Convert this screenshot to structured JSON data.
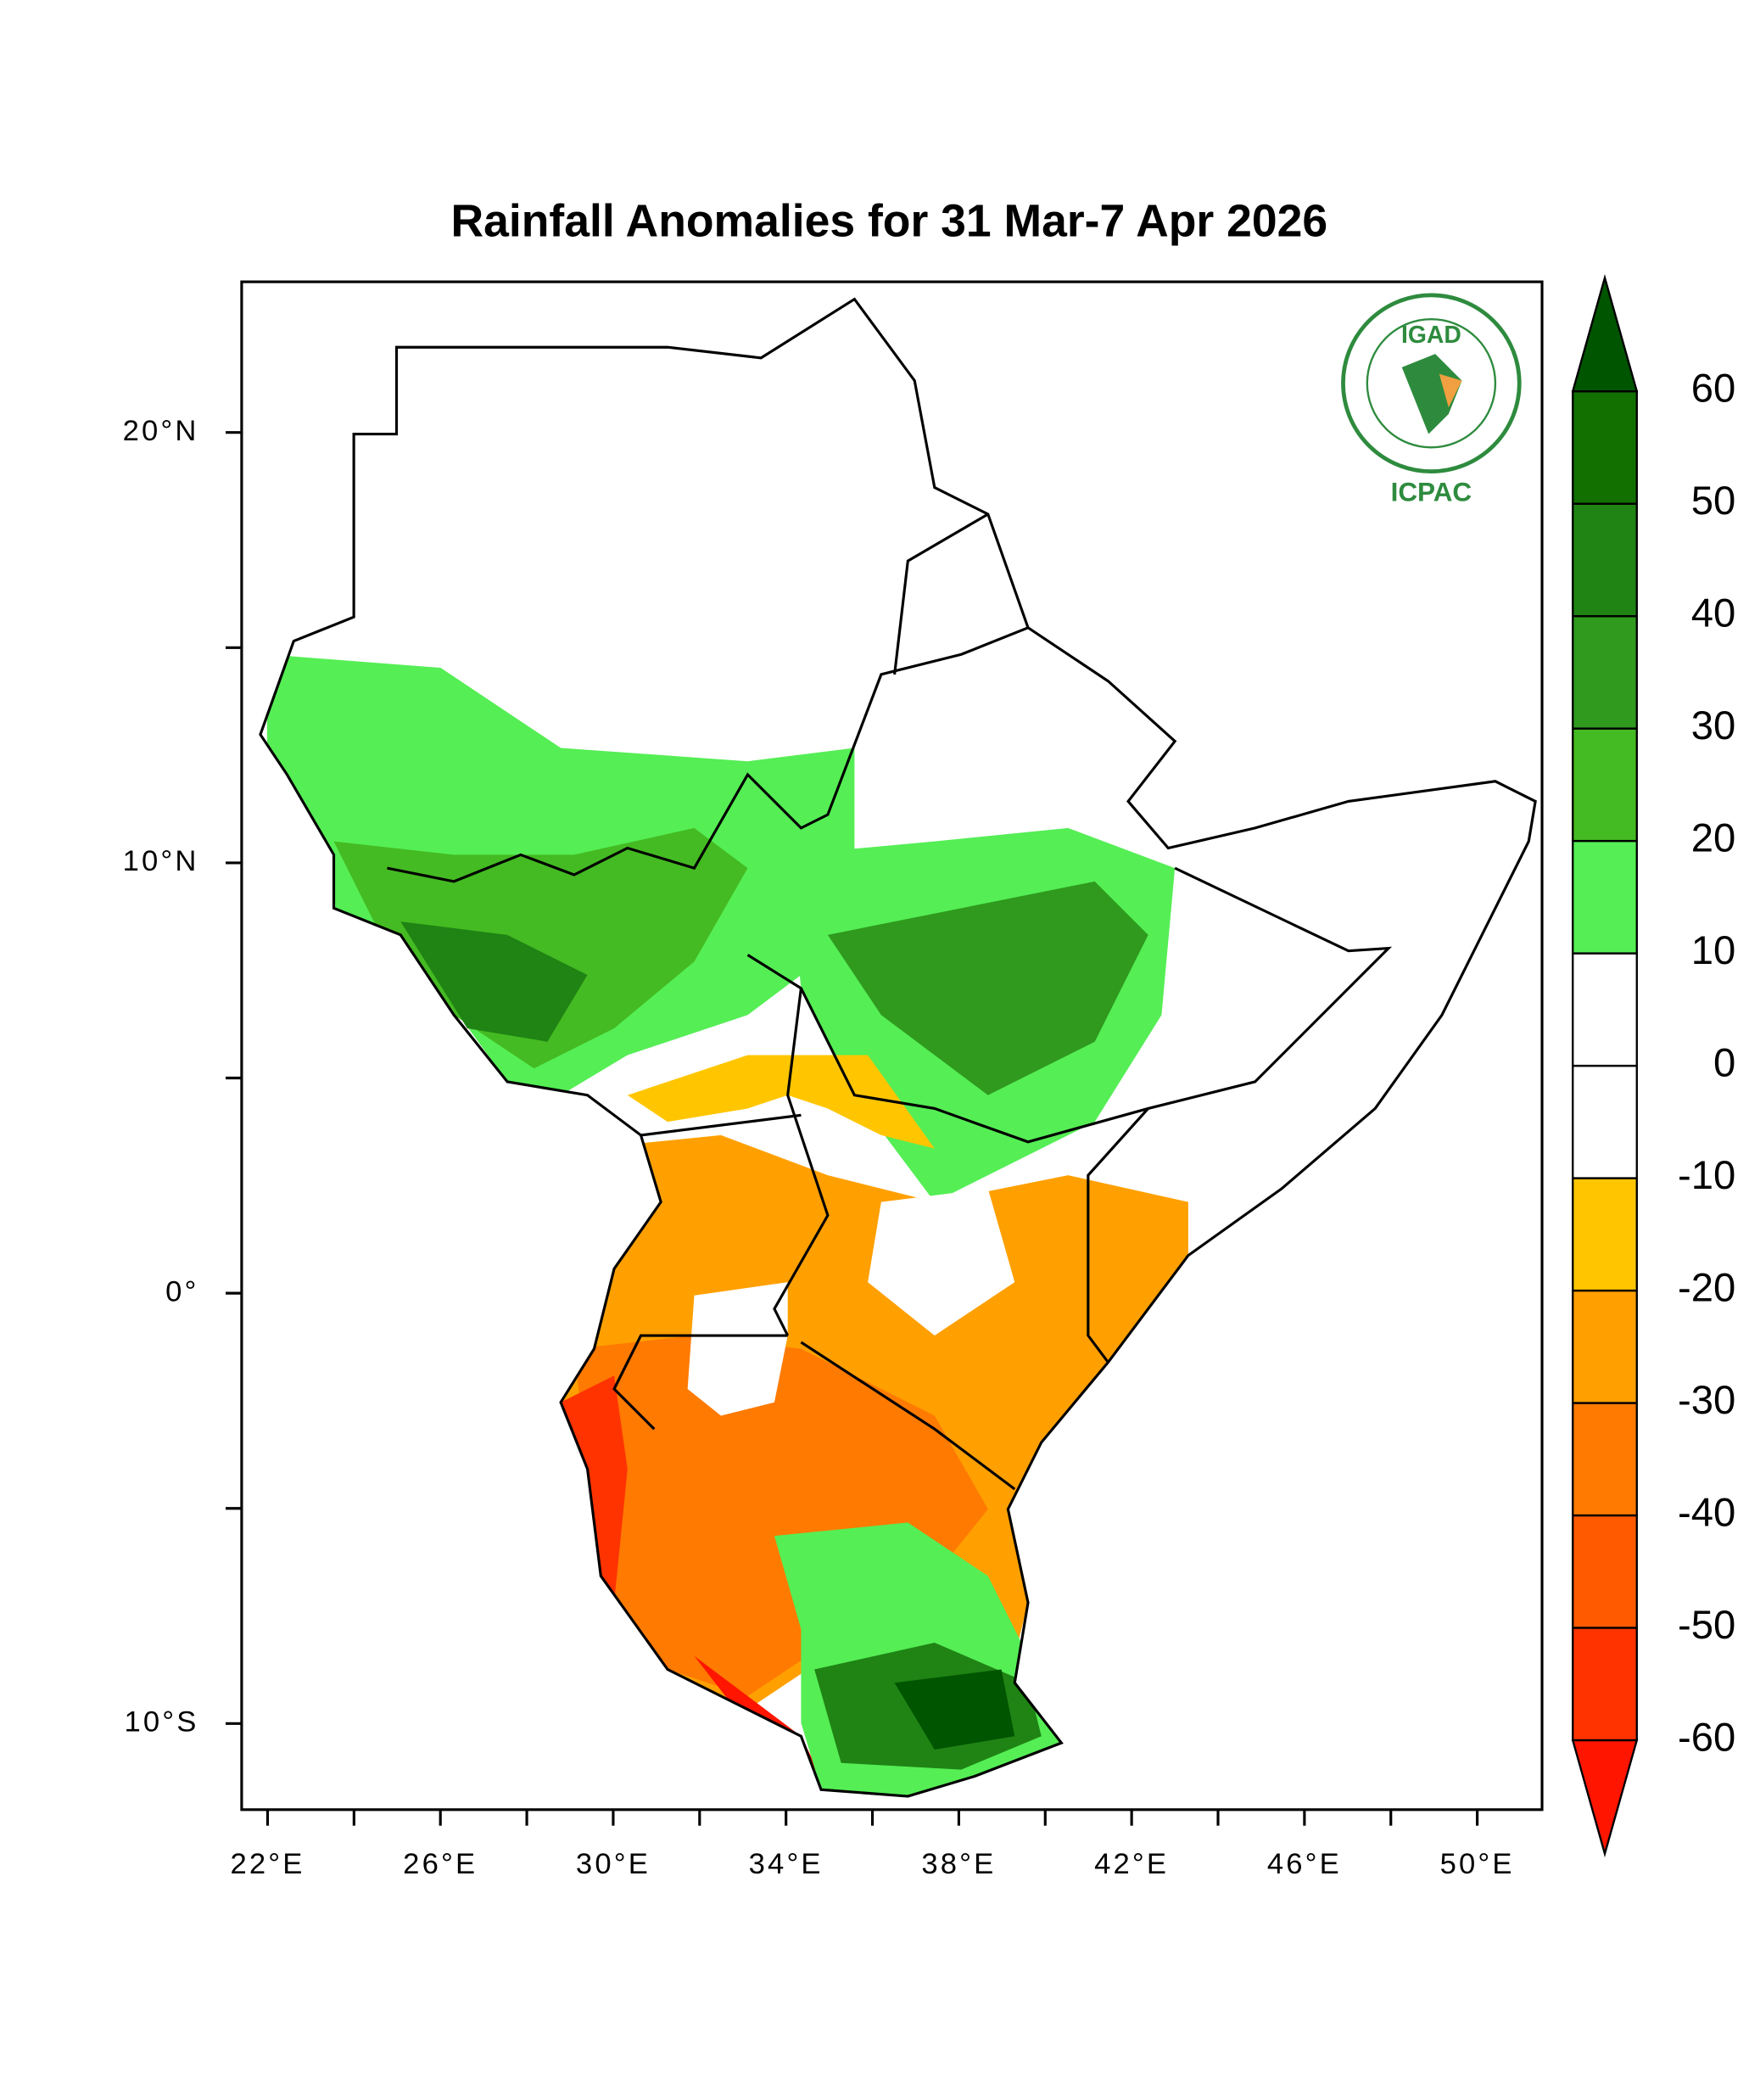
{
  "chart_data": {
    "type": "map",
    "title": "Rainfall Anomalies for 31 Mar-7 Apr 2026",
    "xlim": [
      21.4,
      51.5
    ],
    "ylim": [
      -12,
      23.5
    ],
    "xticks": [
      {
        "value": 22,
        "label": "22°E"
      },
      {
        "value": 26,
        "label": "26°E"
      },
      {
        "value": 30,
        "label": "30°E"
      },
      {
        "value": 34,
        "label": "34°E"
      },
      {
        "value": 38,
        "label": "38°E"
      },
      {
        "value": 42,
        "label": "42°E"
      },
      {
        "value": 46,
        "label": "46°E"
      },
      {
        "value": 50,
        "label": "50°E"
      }
    ],
    "xminorticks": [
      24,
      28,
      32,
      36,
      40,
      44,
      48
    ],
    "yticks": [
      {
        "value": 20,
        "label": "20°N"
      },
      {
        "value": 10,
        "label": "10°N"
      },
      {
        "value": 0,
        "label": "0°"
      },
      {
        "value": -10,
        "label": "10°S"
      }
    ],
    "yminorticks": [
      15,
      5,
      -5
    ],
    "colorbar": {
      "levels": [
        -60,
        -50,
        -40,
        -30,
        -20,
        -10,
        0,
        10,
        20,
        30,
        40,
        50,
        60
      ],
      "colors": [
        "#ff1500",
        "#ff3300",
        "#ff5a00",
        "#ff7a00",
        "#ffa000",
        "#ffc600",
        "#ffffff",
        "#ffffff",
        "#55ee55",
        "#44bb22",
        "#2f9a1e",
        "#1f8414",
        "#117000",
        "#005500"
      ]
    },
    "logo": {
      "name": "IGAD",
      "org": "ICPAC"
    }
  }
}
